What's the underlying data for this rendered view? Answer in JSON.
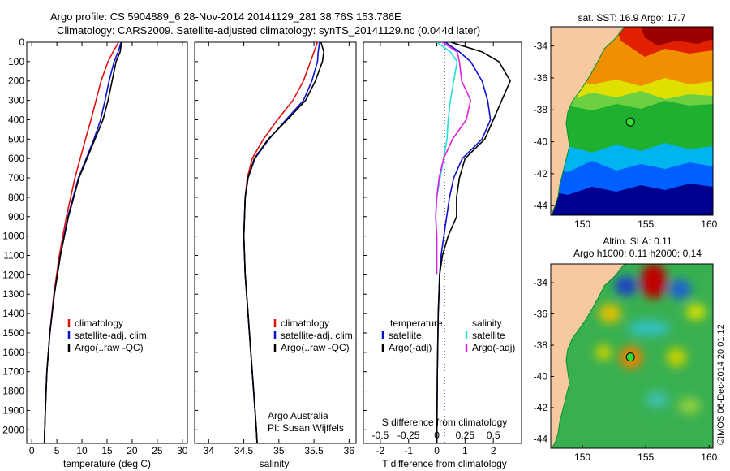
{
  "header": {
    "title1": "Argo profile: CS 5904889_6 28-Nov-2014 20141129_281 38.76S 153.786E",
    "title2": "Climatology: CARS2009. Satellite-adjusted climatology: synTS_20141129.nc (0.044d later)"
  },
  "colors": {
    "climatology": "#e01010",
    "satellite": "#1010d0",
    "argo": "#000000",
    "s_satellite": "#20e0e0",
    "s_argo": "#e020e0",
    "land": "#f7c9a0",
    "coast": "#009030"
  },
  "chart_data": [
    {
      "type": "line",
      "name": "temperature-panel",
      "xlabel": "temperature (deg C)",
      "ylabel": "",
      "xlim": [
        -1,
        31
      ],
      "ylim": [
        2070,
        0
      ],
      "xticks": [
        0,
        5,
        10,
        15,
        20,
        25,
        30
      ],
      "yticks": [
        0,
        100,
        200,
        300,
        400,
        500,
        600,
        700,
        800,
        900,
        1000,
        1100,
        1200,
        1300,
        1400,
        1500,
        1600,
        1700,
        1800,
        1900,
        2000
      ],
      "legend": [
        "climatology",
        "satellite-adj. clim.",
        "Argo(..raw -QC)"
      ],
      "series": [
        {
          "name": "climatology",
          "pressure": [
            0,
            50,
            100,
            200,
            300,
            400,
            500,
            700,
            900,
            1100,
            1300,
            1500,
            1700,
            1900,
            2070
          ],
          "values": [
            17.3,
            16.2,
            15.2,
            13.8,
            12.8,
            11.8,
            10.7,
            8.6,
            6.9,
            5.5,
            4.4,
            3.6,
            3.0,
            2.7,
            2.5
          ]
        },
        {
          "name": "satellite-adj. clim.",
          "pressure": [
            0,
            50,
            100,
            200,
            300,
            400,
            500,
            700,
            900,
            1100,
            1300,
            1500,
            1700,
            1900,
            2070
          ],
          "values": [
            17.8,
            17.2,
            16.4,
            15.4,
            14.6,
            13.7,
            12.4,
            9.3,
            7.2,
            5.7,
            4.5,
            3.6,
            3.0,
            2.7,
            2.5
          ]
        },
        {
          "name": "Argo(..raw -QC)",
          "pressure": [
            0,
            50,
            100,
            200,
            300,
            400,
            500,
            700,
            900,
            1100,
            1300,
            1500,
            1700,
            1900,
            2070
          ],
          "values": [
            17.9,
            17.6,
            16.8,
            16.0,
            15.2,
            14.2,
            12.6,
            9.4,
            7.3,
            5.7,
            4.5,
            3.6,
            3.0,
            2.7,
            2.5
          ]
        }
      ]
    },
    {
      "type": "line",
      "name": "salinity-panel",
      "xlabel": "salinity",
      "xlim": [
        33.8,
        36.1
      ],
      "ylim": [
        2070,
        0
      ],
      "xticks": [
        34,
        34.5,
        35,
        35.5,
        36
      ],
      "legend": [
        "climatology",
        "satellite-adj. clim.",
        "Argo(..raw -QC)"
      ],
      "annotation": [
        "Argo Australia",
        "PI: Susan Wijffels"
      ],
      "series": [
        {
          "name": "climatology",
          "pressure": [
            0,
            50,
            100,
            200,
            300,
            400,
            500,
            600,
            700,
            800,
            1000,
            1200,
            1400,
            1600,
            1800,
            2000,
            2070
          ],
          "values": [
            35.55,
            35.5,
            35.45,
            35.35,
            35.2,
            34.98,
            34.78,
            34.62,
            34.55,
            34.52,
            34.5,
            34.52,
            34.56,
            34.6,
            34.64,
            34.68,
            34.69
          ]
        },
        {
          "name": "satellite-adj. clim.",
          "pressure": [
            0,
            50,
            100,
            200,
            300,
            400,
            500,
            600,
            700,
            800,
            1000,
            1200,
            1400,
            1600,
            1800,
            2000,
            2070
          ],
          "values": [
            35.58,
            35.56,
            35.55,
            35.47,
            35.35,
            35.1,
            34.86,
            34.66,
            34.56,
            34.52,
            34.5,
            34.52,
            34.56,
            34.6,
            34.64,
            34.68,
            34.69
          ]
        },
        {
          "name": "Argo(..raw -QC)",
          "pressure": [
            0,
            50,
            100,
            200,
            300,
            400,
            500,
            600,
            700,
            800,
            1000,
            1200,
            1400,
            1600,
            1800,
            2000,
            2070
          ],
          "values": [
            35.6,
            35.64,
            35.62,
            35.52,
            35.38,
            35.12,
            34.85,
            34.65,
            34.56,
            34.52,
            34.5,
            34.52,
            34.56,
            34.6,
            34.64,
            34.68,
            34.69
          ]
        }
      ]
    },
    {
      "type": "line",
      "name": "difference-panel",
      "xlabel": "T difference from climatology",
      "xlabel_top": "S difference from climatology",
      "xlim": [
        -2.6,
        3.0
      ],
      "ylim": [
        2070,
        0
      ],
      "xticks": [
        -2,
        -1,
        0,
        1,
        2
      ],
      "xticks_top": [
        -0.5,
        -0.25,
        0,
        0.25,
        0.5
      ],
      "legend_t": {
        "title": "temperature",
        "items": [
          "satellite",
          "Argo(-adj)"
        ]
      },
      "legend_s": {
        "title": "salinity",
        "items": [
          "satellite",
          "Argo(-adj)"
        ]
      },
      "series": [
        {
          "name": "T satellite",
          "pressure": [
            0,
            50,
            100,
            200,
            300,
            400,
            500,
            600,
            700,
            800,
            900,
            1000,
            1100,
            1200,
            1400,
            1700,
            2070
          ],
          "values": [
            0.3,
            0.8,
            1.2,
            1.6,
            1.8,
            1.9,
            1.6,
            0.9,
            0.6,
            0.45,
            0.35,
            0.25,
            0.15,
            0.1,
            0.05,
            0.02,
            0.0
          ]
        },
        {
          "name": "T Argo(-adj)",
          "pressure": [
            0,
            50,
            100,
            200,
            300,
            400,
            500,
            600,
            700,
            800,
            900,
            1000,
            1100,
            1200,
            1400,
            1700,
            2070
          ],
          "values": [
            0.5,
            1.6,
            2.2,
            2.6,
            2.3,
            2.0,
            1.7,
            1.0,
            0.8,
            0.7,
            0.7,
            0.4,
            0.2,
            0.1,
            0.05,
            0.02,
            0.0
          ]
        },
        {
          "name": "S satellite",
          "pressure": [
            0,
            50,
            100,
            200,
            300,
            400,
            500,
            600,
            700,
            800,
            900,
            1000,
            1100,
            1200
          ],
          "values": [
            0.0,
            0.12,
            0.18,
            0.15,
            0.12,
            0.1,
            0.09,
            0.06,
            0.03,
            0.0,
            -0.01,
            0.0,
            0.0,
            0.0
          ]
        },
        {
          "name": "S Argo(-adj)",
          "pressure": [
            0,
            50,
            100,
            200,
            300,
            400,
            500,
            600,
            700,
            800,
            900,
            1000,
            1100,
            1200
          ],
          "values": [
            0.05,
            0.18,
            0.2,
            0.22,
            0.3,
            0.26,
            0.14,
            0.06,
            0.02,
            0.0,
            -0.01,
            0.0,
            0.0,
            0.0
          ]
        }
      ]
    },
    {
      "type": "heatmap",
      "name": "sst-map",
      "title": "sat. SST: 16.9 Argo: 17.7",
      "xlim": [
        147.5,
        160.3
      ],
      "ylim": [
        -44.6,
        -32.8
      ],
      "xticks": [
        150,
        155,
        160
      ],
      "yticks": [
        -34,
        -36,
        -38,
        -40,
        -42,
        -44
      ],
      "marker": {
        "lon": 153.786,
        "lat": -38.76
      }
    },
    {
      "type": "heatmap",
      "name": "sla-map",
      "title1": "Altim. SLA: 0.11",
      "title2": "Argo h1000: 0.11 h2000: 0.14",
      "xlim": [
        147.5,
        160.3
      ],
      "ylim": [
        -44.6,
        -32.8
      ],
      "xticks": [
        150,
        155,
        160
      ],
      "yticks": [
        -34,
        -36,
        -38,
        -40,
        -42,
        -44
      ],
      "marker": {
        "lon": 153.786,
        "lat": -38.76
      }
    }
  ],
  "footer": {
    "stamp": "©IMOS 06-Dec-2014 20:01:12"
  }
}
